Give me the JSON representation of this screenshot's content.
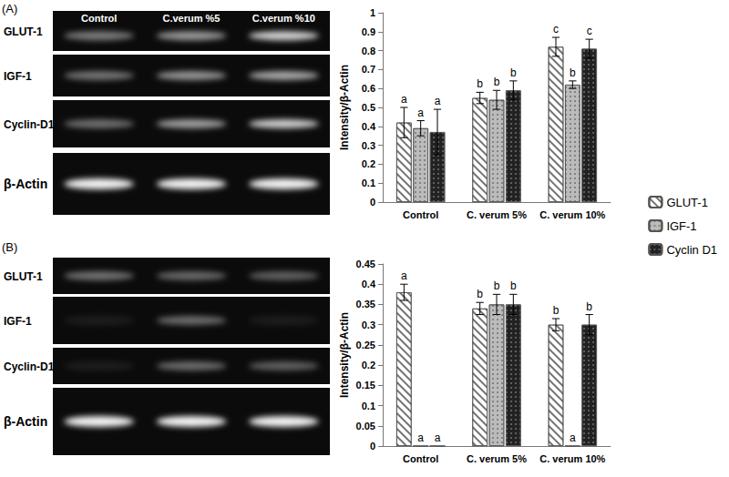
{
  "chart_data": [
    {
      "type": "bar",
      "y_label": "Intensity/β-Actin",
      "categories": [
        "Control",
        "C. verum 5%",
        "C. verum 10%"
      ],
      "series": [
        {
          "name": "GLUT-1",
          "color": "#ffffff",
          "values": [
            0.42,
            0.55,
            0.82
          ],
          "errors": [
            0.08,
            0.03,
            0.05
          ],
          "letters": [
            "a",
            "b",
            "c"
          ]
        },
        {
          "name": "IGF-1",
          "color": "#bbbbbb",
          "values": [
            0.39,
            0.54,
            0.62
          ],
          "errors": [
            0.04,
            0.05,
            0.02
          ],
          "letters": [
            "a",
            "b",
            "b"
          ]
        },
        {
          "name": "Cyclin D1",
          "color": "#222222",
          "values": [
            0.37,
            0.59,
            0.81
          ],
          "errors": [
            0.12,
            0.05,
            0.05
          ],
          "letters": [
            "a",
            "b",
            "c"
          ]
        }
      ],
      "ylim": [
        0,
        1
      ],
      "yticks": [
        0,
        0.1,
        0.2,
        0.3,
        0.4,
        0.5,
        0.6,
        0.7,
        0.8,
        0.9,
        1
      ],
      "grid": false,
      "legend": "right"
    },
    {
      "type": "bar",
      "y_label": "Intensity/β-Actin",
      "categories": [
        "Control",
        "C. verum 5%",
        "C. verum 10%"
      ],
      "series": [
        {
          "name": "GLUT-1",
          "color": "#ffffff",
          "values": [
            0.38,
            0.34,
            0.3
          ],
          "errors": [
            0.02,
            0.015,
            0.015
          ],
          "letters": [
            "a",
            "b",
            "b"
          ]
        },
        {
          "name": "IGF-1",
          "color": "#bbbbbb",
          "values": [
            0,
            0.35,
            0
          ],
          "errors": [
            null,
            0.025,
            null
          ],
          "letters": [
            "a",
            "b",
            "a"
          ]
        },
        {
          "name": "Cyclin D1",
          "color": "#222222",
          "values": [
            0,
            0.35,
            0.3
          ],
          "errors": [
            null,
            0.025,
            0.025
          ],
          "letters": [
            "a",
            "b",
            "b"
          ]
        }
      ],
      "ylim": [
        0,
        0.45
      ],
      "yticks": [
        0,
        0.05,
        0.1,
        0.15,
        0.2,
        0.25,
        0.3,
        0.35,
        0.4,
        0.45
      ],
      "grid": false
    }
  ],
  "figure": {
    "panels": [
      {
        "label": "(A)",
        "gel": {
          "lanes": [
            "Control",
            "C.verum %5",
            "C.verum %10"
          ],
          "rows": [
            "GLUT-1",
            "IGF-1",
            "Cyclin-D1",
            "β-Actin"
          ]
        }
      },
      {
        "label": "(B)",
        "gel": {
          "lanes": [],
          "rows": [
            "GLUT-1",
            "IGF-1",
            "Cyclin-D1",
            "β-Actin"
          ]
        }
      }
    ]
  }
}
